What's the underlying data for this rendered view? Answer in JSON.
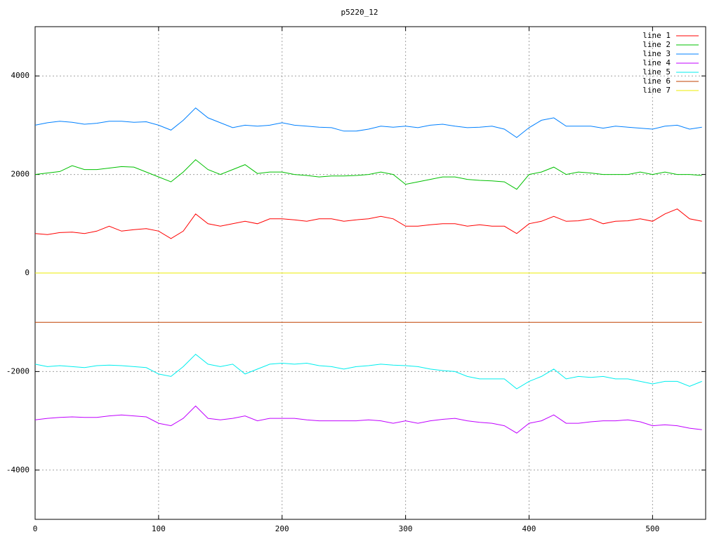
{
  "chart_data": {
    "type": "line",
    "title": "p5220_12",
    "x": [
      0,
      10,
      20,
      30,
      40,
      50,
      60,
      70,
      80,
      90,
      100,
      110,
      120,
      130,
      140,
      150,
      160,
      170,
      180,
      190,
      200,
      210,
      220,
      230,
      240,
      250,
      260,
      270,
      280,
      290,
      300,
      310,
      320,
      330,
      340,
      350,
      360,
      370,
      380,
      390,
      400,
      410,
      420,
      430,
      440,
      450,
      460,
      470,
      480,
      490,
      500,
      510,
      520,
      530,
      540
    ],
    "series": [
      {
        "name": "line 1",
        "color": "#ff0000",
        "values": [
          800,
          780,
          820,
          830,
          800,
          850,
          950,
          850,
          880,
          900,
          850,
          700,
          850,
          1200,
          1000,
          950,
          1000,
          1050,
          1000,
          1100,
          1100,
          1080,
          1050,
          1100,
          1100,
          1050,
          1080,
          1100,
          1150,
          1100,
          950,
          950,
          980,
          1000,
          1000,
          950,
          980,
          950,
          950,
          800,
          1000,
          1050,
          1150,
          1050,
          1060,
          1100,
          1000,
          1050,
          1060,
          1100,
          1050,
          1200,
          1300,
          1100,
          1050
        ]
      },
      {
        "name": "line 2",
        "color": "#00c000",
        "values": [
          2000,
          2030,
          2060,
          2180,
          2100,
          2100,
          2130,
          2160,
          2150,
          2050,
          1950,
          1850,
          2050,
          2300,
          2100,
          2000,
          2100,
          2200,
          2020,
          2050,
          2050,
          2000,
          1980,
          1950,
          1970,
          1970,
          1980,
          2000,
          2050,
          2000,
          1800,
          1850,
          1900,
          1950,
          1950,
          1900,
          1880,
          1870,
          1850,
          1700,
          2000,
          2050,
          2150,
          2000,
          2050,
          2030,
          2000,
          2000,
          2000,
          2050,
          2000,
          2050,
          2000,
          2000,
          1980
        ]
      },
      {
        "name": "line 3",
        "color": "#0080ff",
        "values": [
          3000,
          3050,
          3080,
          3060,
          3020,
          3040,
          3080,
          3080,
          3060,
          3070,
          3000,
          2900,
          3100,
          3350,
          3150,
          3050,
          2950,
          3000,
          2980,
          3000,
          3050,
          3000,
          2980,
          2960,
          2950,
          2880,
          2880,
          2920,
          2980,
          2960,
          2980,
          2950,
          3000,
          3020,
          2980,
          2950,
          2960,
          2980,
          2920,
          2750,
          2950,
          3100,
          3150,
          2980,
          2980,
          2980,
          2940,
          2980,
          2960,
          2940,
          2920,
          2980,
          3000,
          2920,
          2960
        ]
      },
      {
        "name": "line 4",
        "color": "#c000ff",
        "values": [
          -2980,
          -2950,
          -2930,
          -2920,
          -2930,
          -2930,
          -2900,
          -2880,
          -2900,
          -2920,
          -3050,
          -3100,
          -2950,
          -2700,
          -2950,
          -2980,
          -2950,
          -2900,
          -3000,
          -2950,
          -2950,
          -2950,
          -2980,
          -3000,
          -3000,
          -3000,
          -3000,
          -2980,
          -3000,
          -3050,
          -3000,
          -3050,
          -3000,
          -2970,
          -2950,
          -3000,
          -3030,
          -3050,
          -3100,
          -3250,
          -3050,
          -3000,
          -2880,
          -3050,
          -3050,
          -3020,
          -3000,
          -3000,
          -2980,
          -3020,
          -3100,
          -3080,
          -3100,
          -3150,
          -3180
        ]
      },
      {
        "name": "line 5",
        "color": "#00eeee",
        "values": [
          -1850,
          -1900,
          -1880,
          -1900,
          -1920,
          -1880,
          -1870,
          -1880,
          -1900,
          -1920,
          -2050,
          -2100,
          -1900,
          -1650,
          -1850,
          -1900,
          -1850,
          -2050,
          -1950,
          -1850,
          -1830,
          -1850,
          -1830,
          -1880,
          -1900,
          -1950,
          -1900,
          -1880,
          -1850,
          -1870,
          -1880,
          -1900,
          -1950,
          -1980,
          -2000,
          -2100,
          -2150,
          -2150,
          -2150,
          -2350,
          -2200,
          -2100,
          -1950,
          -2150,
          -2100,
          -2120,
          -2100,
          -2150,
          -2150,
          -2200,
          -2250,
          -2200,
          -2200,
          -2300,
          -2200
        ]
      },
      {
        "name": "line 6",
        "color": "#c04000",
        "values": [
          -1000,
          -1000,
          -1000,
          -1000,
          -1000,
          -1000,
          -1000,
          -1000,
          -1000,
          -1000,
          -1000,
          -1000,
          -1000,
          -1000,
          -1000,
          -1000,
          -1000,
          -1000,
          -1000,
          -1000,
          -1000,
          -1000,
          -1000,
          -1000,
          -1000,
          -1000,
          -1000,
          -1000,
          -1000,
          -1000,
          -1000,
          -1000,
          -1000,
          -1000,
          -1000,
          -1000,
          -1000,
          -1000,
          -1000,
          -1000,
          -1000,
          -1000,
          -1000,
          -1000,
          -1000,
          -1000,
          -1000,
          -1000,
          -1000,
          -1000,
          -1000,
          -1000,
          -1000,
          -1000,
          -1000
        ]
      },
      {
        "name": "line 7",
        "color": "#eeee00",
        "values": [
          0,
          0,
          0,
          0,
          0,
          0,
          0,
          0,
          0,
          0,
          0,
          0,
          0,
          0,
          0,
          0,
          0,
          0,
          0,
          0,
          0,
          0,
          0,
          0,
          0,
          0,
          0,
          0,
          0,
          0,
          0,
          0,
          0,
          0,
          0,
          0,
          0,
          0,
          0,
          0,
          0,
          0,
          0,
          0,
          0,
          0,
          0,
          0,
          0,
          0,
          0,
          0,
          0,
          0,
          0
        ]
      }
    ],
    "xlim": [
      0,
      543
    ],
    "ylim": [
      -5000,
      5000
    ],
    "xticks": [
      0,
      100,
      200,
      300,
      400,
      500
    ],
    "yticks": [
      -4000,
      -2000,
      0,
      2000,
      4000
    ],
    "grid": true,
    "legend": "top-right"
  }
}
